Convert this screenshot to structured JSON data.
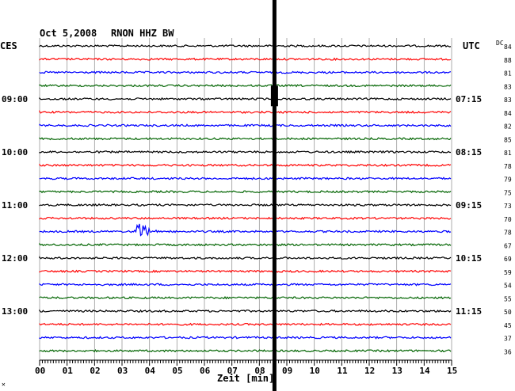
{
  "header": {
    "date": "Oct 5,2008",
    "station": "RNON HHZ BW",
    "left_timezone": "CES",
    "right_timezone": "UTC",
    "dc_label": "DC"
  },
  "x_axis": {
    "label": "Zeit [min]",
    "ticks": [
      "00",
      "01",
      "02",
      "03",
      "04",
      "05",
      "06",
      "07",
      "08",
      "09",
      "10",
      "11",
      "12",
      "13",
      "14",
      "15"
    ]
  },
  "left_times": [
    {
      "text": "09:00",
      "row": 4
    },
    {
      "text": "10:00",
      "row": 8
    },
    {
      "text": "11:00",
      "row": 12
    },
    {
      "text": "12:00",
      "row": 16
    },
    {
      "text": "13:00",
      "row": 20
    }
  ],
  "right_times": [
    {
      "text": "07:15",
      "row": 4
    },
    {
      "text": "08:15",
      "row": 8
    },
    {
      "text": "09:15",
      "row": 12
    },
    {
      "text": "10:15",
      "row": 16
    },
    {
      "text": "11:15",
      "row": 20
    }
  ],
  "dc_values": [
    "84",
    "88",
    "81",
    "83",
    "83",
    "84",
    "82",
    "85",
    "81",
    "78",
    "79",
    "75",
    "73",
    "70",
    "78",
    "67",
    "69",
    "59",
    "54",
    "55",
    "50",
    "45",
    "37",
    "36"
  ],
  "trace_colors": [
    "#000000",
    "#ff0000",
    "#0000ff",
    "#006400"
  ],
  "event": {
    "row": 14,
    "minute": 3.6
  },
  "marker": {
    "minute": 8.55
  },
  "corner_mark": "✕"
}
